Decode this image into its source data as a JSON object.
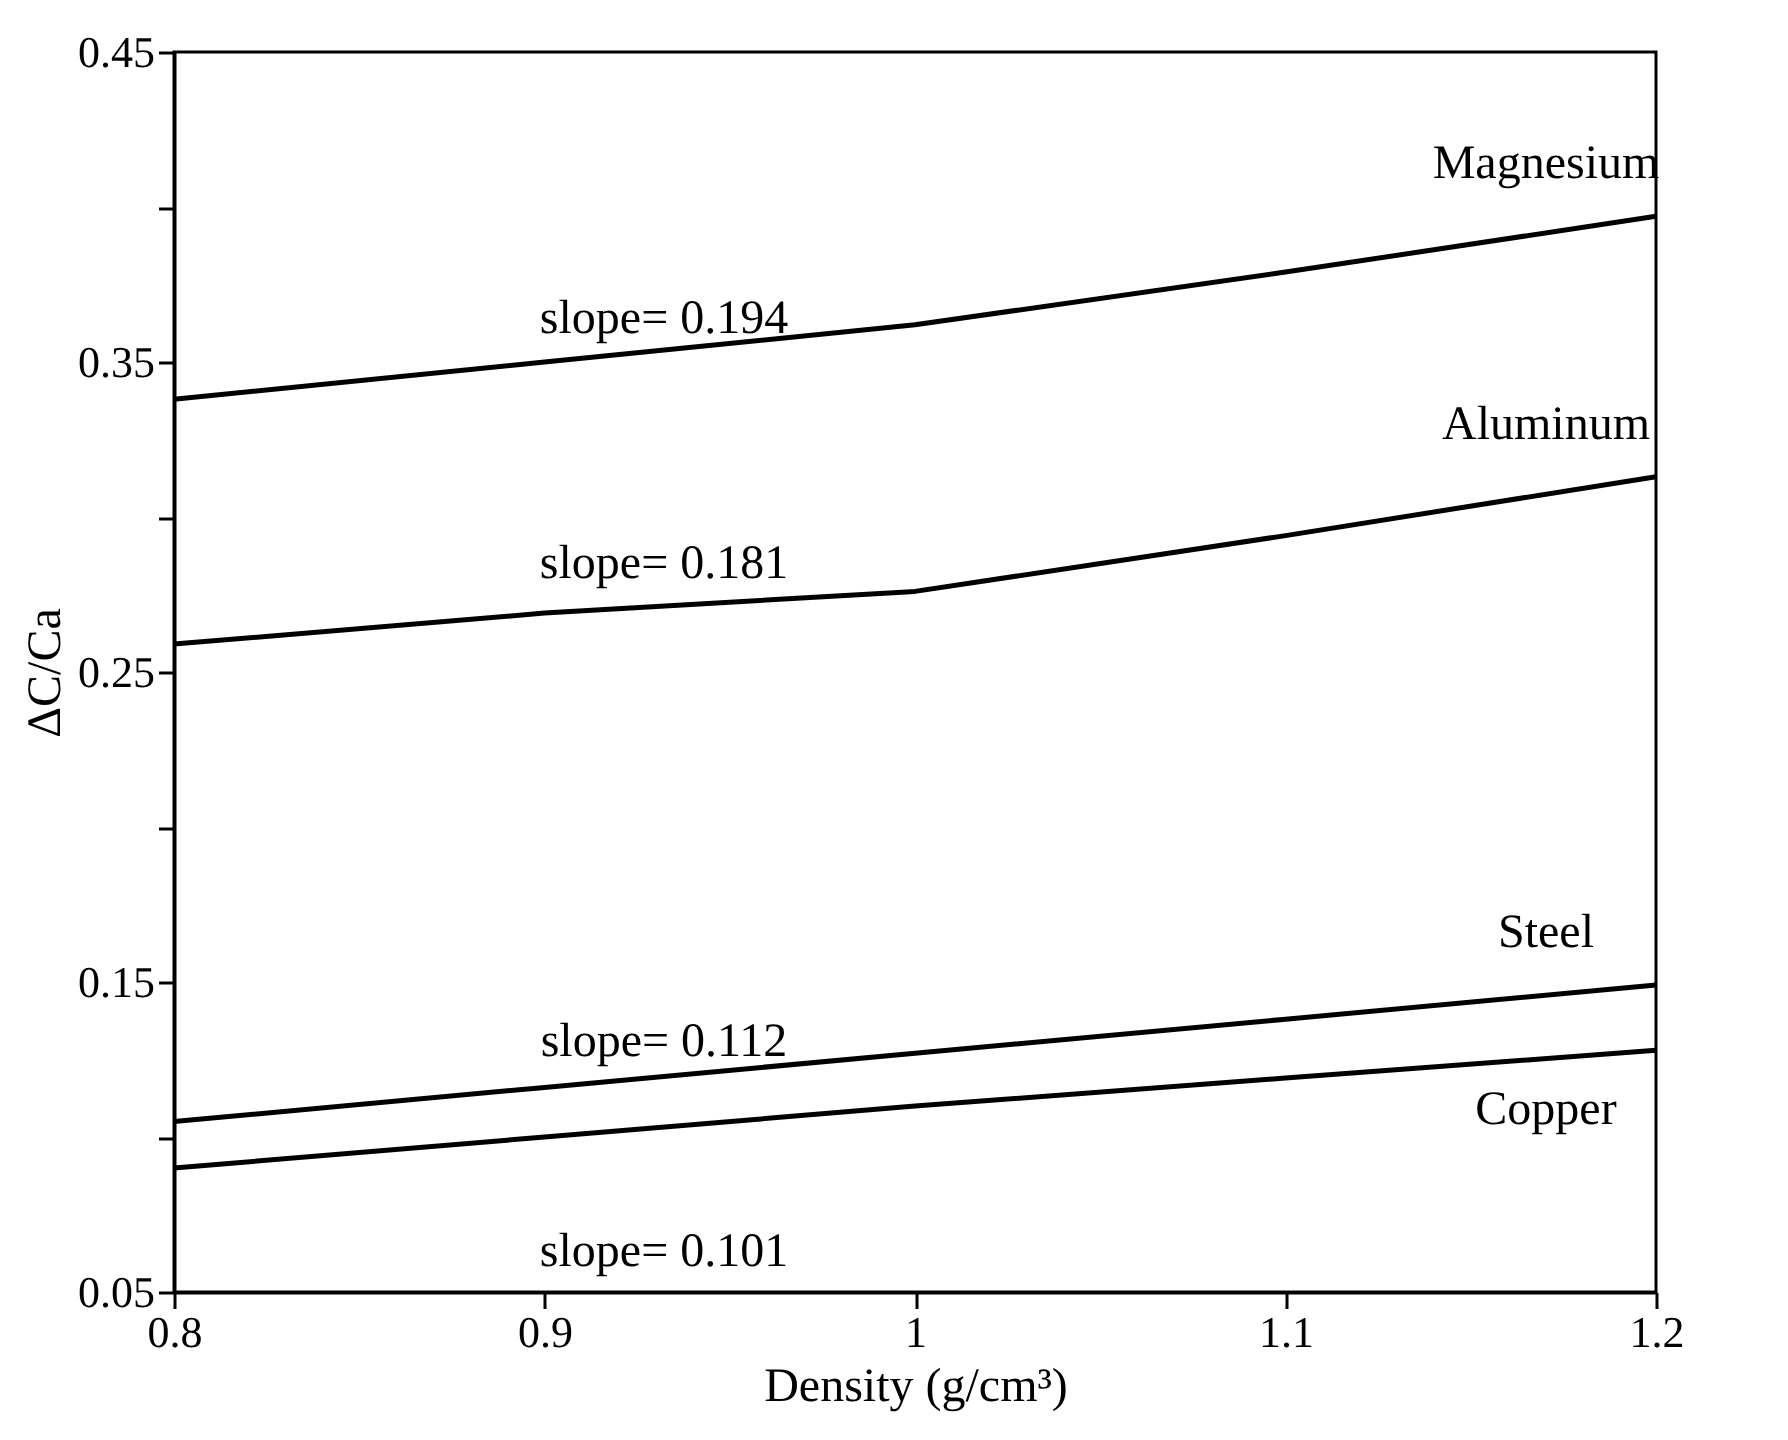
{
  "chart_data": {
    "type": "line",
    "xlabel": "Density (g/cm³)",
    "ylabel": "ΔC/Ca",
    "x": [
      0.8,
      0.9,
      1.0,
      1.1,
      1.2
    ],
    "series": [
      {
        "color": "#000000",
        "values": [
          0.338,
          0.35,
          0.362,
          0.379,
          0.397
        ]
      },
      {
        "color": "#000000",
        "values": [
          0.259,
          0.269,
          0.276,
          0.294,
          0.313
        ]
      },
      {
        "color": "#000000",
        "values": [
          0.105,
          0.116,
          0.127,
          0.138,
          0.149
        ]
      },
      {
        "color": "#000000",
        "values": [
          0.09,
          0.1,
          0.11,
          0.119,
          0.128
        ]
      }
    ],
    "xlim": [
      0.8,
      1.2
    ],
    "xticks": [
      0.8,
      0.9,
      1,
      1.1,
      1.2
    ],
    "ylim": [
      0.05,
      0.45
    ],
    "yticks": [
      0.05,
      {
        "value": 0.1,
        "label": null
      },
      0.15,
      {
        "value": 0.2,
        "label": null
      },
      0.25,
      {
        "value": 0.3,
        "label": null
      },
      0.35,
      {
        "value": 0.4,
        "label": null
      },
      0.45
    ],
    "grid": false,
    "marker": "none",
    "line_style": "solid",
    "annotations": [
      "Magnesium",
      "slope= 0.194",
      "Aluminum",
      "slope= 0.181",
      "Steel",
      "slope= 0.112",
      "Copper",
      "slope= 0.101"
    ]
  }
}
